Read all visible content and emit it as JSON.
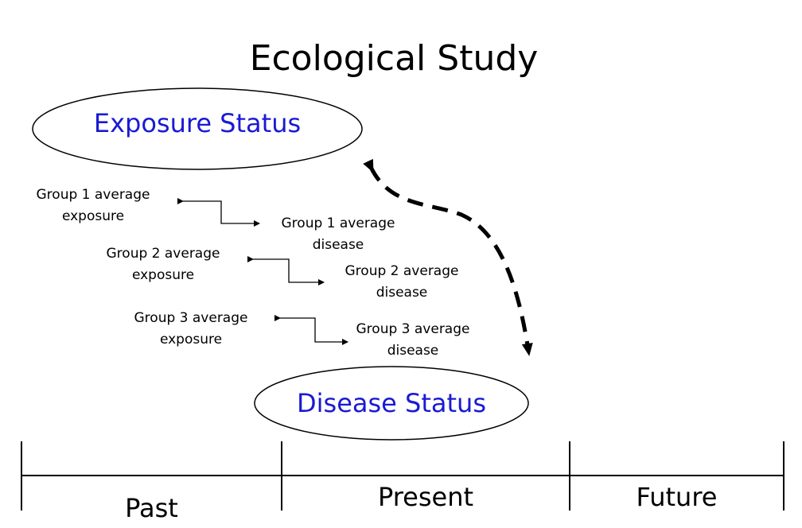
{
  "title": "Ecological Study",
  "exposure_label": "Exposure Status",
  "disease_label": "Disease Status",
  "groups": [
    {
      "exposure": [
        "Group 1 average",
        "exposure"
      ],
      "disease": [
        "Group 1 average",
        "disease"
      ]
    },
    {
      "exposure": [
        "Group 2 average",
        "exposure"
      ],
      "disease": [
        "Group 2 average",
        "disease"
      ]
    },
    {
      "exposure": [
        "Group 3 average",
        "exposure"
      ],
      "disease": [
        "Group 3 average",
        "disease"
      ]
    }
  ],
  "timeline": {
    "past": "Past",
    "present": "Present",
    "future": "Future"
  },
  "colors": {
    "ellipse_text": "#1a1ad4",
    "line": "#000000"
  }
}
